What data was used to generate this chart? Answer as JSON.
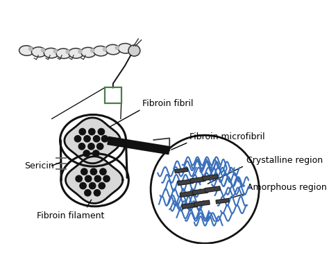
{
  "bg_color": "#ffffff",
  "text_color": "#000000",
  "line_color": "#000000",
  "green_rect_color": "#4a7c4e",
  "blue_color": "#3a6fbb",
  "dark_gray": "#404040",
  "labels": {
    "fibroin_fibril": "Fibroin fibril",
    "fibroin_microfibril": "Fibroin microfibril",
    "crystalline_region": "Crystalline region",
    "amorphous_region": "Amorphous region",
    "sericin": "Sericin",
    "fibroin_filament": "Fibroin filament"
  },
  "font_size": 9,
  "caterpillar_color": "#e8e8e8",
  "caterpillar_edge": "#333333",
  "filament_fill": "#d8d8d8",
  "filament_edge": "#111111",
  "dot_color": "#111111",
  "rod_edge": "#222222",
  "connector_color": "#333333"
}
